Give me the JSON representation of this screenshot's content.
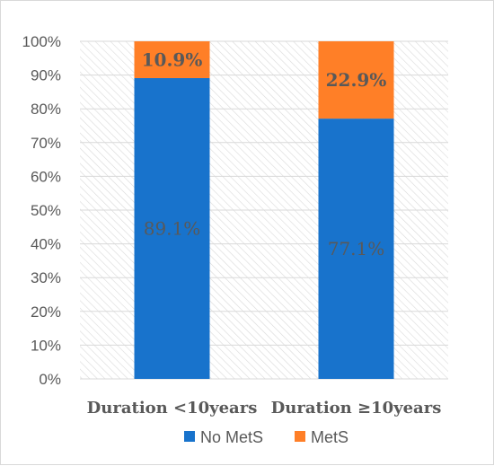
{
  "chart_data": {
    "type": "bar",
    "stacked": true,
    "categories": [
      "Duration <10years",
      "Duration ≥10years"
    ],
    "series": [
      {
        "name": "No MetS",
        "values": [
          89.1,
          77.1
        ],
        "labels": [
          "89.1%",
          "77.1%"
        ],
        "color": "#1873CC"
      },
      {
        "name": "MetS",
        "values": [
          10.9,
          22.9
        ],
        "labels": [
          "10.9%",
          "22.9%"
        ],
        "color": "#FF7F27"
      }
    ],
    "ylim": [
      0,
      100
    ],
    "yticks": [
      "0%",
      "10%",
      "20%",
      "30%",
      "40%",
      "50%",
      "60%",
      "70%",
      "80%",
      "90%",
      "100%"
    ],
    "grid": true,
    "plot_background": "hatched",
    "legend_position": "bottom",
    "title": "",
    "xlabel": "",
    "ylabel": ""
  }
}
